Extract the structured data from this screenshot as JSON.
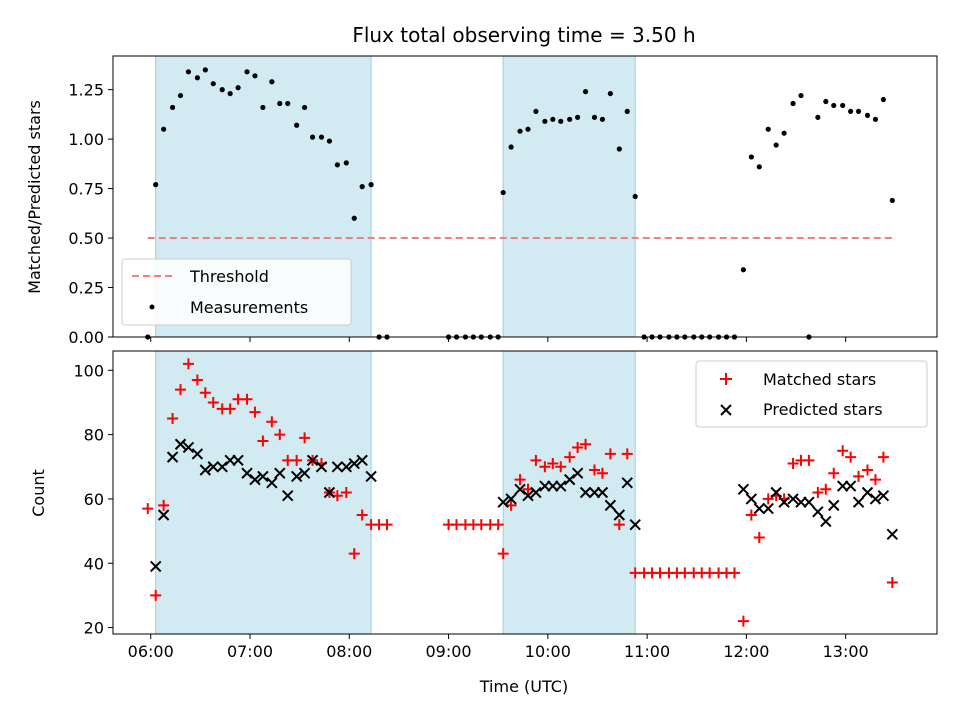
{
  "title": "Flux total observing time = 3.50 h",
  "colors": {
    "threshold": "#f08080",
    "measurement": "#000000",
    "matched": "#ff0000",
    "predicted": "#000000",
    "shade": "#add8e6"
  },
  "chart_data": [
    {
      "type": "scatter",
      "panel": "top",
      "ylabel": "Matched/Predicted stars",
      "xlabel": "",
      "ylim": [
        0,
        1.42
      ],
      "x_unit": "hours (UTC)",
      "xlim": [
        5.62,
        13.92
      ],
      "yticks": [
        "0.00",
        "0.25",
        "0.50",
        "0.75",
        "1.00",
        "1.25"
      ],
      "legend_position": "lower-left",
      "grid": false,
      "shaded_intervals": [
        [
          6.05,
          8.22
        ],
        [
          9.55,
          10.88
        ]
      ],
      "series": [
        {
          "name": "Threshold",
          "kind": "dashed-line",
          "x": [
            5.97,
            13.47
          ],
          "y": [
            0.5,
            0.5
          ]
        },
        {
          "name": "Measurements",
          "kind": "points",
          "x": [
            5.97,
            6.05,
            6.13,
            6.22,
            6.3,
            6.38,
            6.47,
            6.55,
            6.63,
            6.72,
            6.8,
            6.88,
            6.97,
            7.05,
            7.13,
            7.22,
            7.3,
            7.38,
            7.47,
            7.55,
            7.63,
            7.72,
            7.8,
            7.88,
            7.97,
            8.05,
            8.13,
            8.22,
            8.3,
            8.38,
            9.0,
            9.08,
            9.17,
            9.25,
            9.33,
            9.42,
            9.5,
            9.55,
            9.63,
            9.72,
            9.8,
            9.88,
            9.97,
            10.05,
            10.13,
            10.22,
            10.3,
            10.38,
            10.47,
            10.55,
            10.63,
            10.72,
            10.8,
            10.88,
            10.97,
            11.05,
            11.13,
            11.22,
            11.3,
            11.38,
            11.47,
            11.55,
            11.63,
            11.72,
            11.8,
            11.88,
            11.97,
            12.05,
            12.13,
            12.22,
            12.3,
            12.38,
            12.47,
            12.55,
            12.63,
            12.72,
            12.8,
            12.88,
            12.97,
            13.05,
            13.13,
            13.22,
            13.3,
            13.38,
            13.47
          ],
          "y": [
            0.0,
            0.77,
            1.05,
            1.16,
            1.22,
            1.34,
            1.31,
            1.35,
            1.28,
            1.25,
            1.23,
            1.26,
            1.34,
            1.32,
            1.16,
            1.29,
            1.18,
            1.18,
            1.07,
            1.16,
            1.01,
            1.01,
            0.99,
            0.87,
            0.88,
            0.6,
            0.76,
            0.77,
            0.0,
            0.0,
            0.0,
            0.0,
            0.0,
            0.0,
            0.0,
            0.0,
            0.0,
            0.73,
            0.96,
            1.04,
            1.05,
            1.14,
            1.09,
            1.1,
            1.09,
            1.1,
            1.11,
            1.24,
            1.11,
            1.1,
            1.23,
            0.95,
            1.14,
            0.71,
            0.0,
            0.0,
            0.0,
            0.0,
            0.0,
            0.0,
            0.0,
            0.0,
            0.0,
            0.0,
            0.0,
            0.0,
            0.34,
            0.91,
            0.86,
            1.05,
            0.97,
            1.03,
            1.18,
            1.22,
            0.0,
            1.11,
            1.19,
            1.17,
            1.17,
            1.14,
            1.14,
            1.12,
            1.1,
            1.2,
            0.69
          ]
        }
      ]
    },
    {
      "type": "scatter",
      "panel": "bottom",
      "ylabel": "Count",
      "xlabel": "Time (UTC)",
      "ylim": [
        18,
        106
      ],
      "x_unit": "hours (UTC)",
      "xlim": [
        5.62,
        13.92
      ],
      "yticks": [
        "20",
        "40",
        "60",
        "80",
        "100"
      ],
      "xticks": [
        "06:00",
        "07:00",
        "08:00",
        "09:00",
        "10:00",
        "11:00",
        "12:00",
        "13:00"
      ],
      "legend_position": "top-right",
      "grid": false,
      "shaded_intervals": [
        [
          6.05,
          8.22
        ],
        [
          9.55,
          10.88
        ]
      ],
      "series": [
        {
          "name": "Matched stars",
          "kind": "plus",
          "x": [
            5.97,
            6.05,
            6.13,
            6.22,
            6.3,
            6.38,
            6.47,
            6.55,
            6.63,
            6.72,
            6.8,
            6.88,
            6.97,
            7.05,
            7.13,
            7.22,
            7.3,
            7.38,
            7.47,
            7.55,
            7.63,
            7.72,
            7.8,
            7.88,
            7.97,
            8.05,
            8.13,
            8.22,
            8.3,
            8.38,
            9.0,
            9.08,
            9.17,
            9.25,
            9.33,
            9.42,
            9.5,
            9.55,
            9.63,
            9.72,
            9.8,
            9.88,
            9.97,
            10.05,
            10.13,
            10.22,
            10.3,
            10.38,
            10.47,
            10.55,
            10.63,
            10.72,
            10.8,
            10.88,
            10.97,
            11.05,
            11.13,
            11.22,
            11.3,
            11.38,
            11.47,
            11.55,
            11.63,
            11.72,
            11.8,
            11.88,
            11.97,
            12.05,
            12.13,
            12.22,
            12.3,
            12.38,
            12.47,
            12.55,
            12.63,
            12.72,
            12.8,
            12.88,
            12.97,
            13.05,
            13.13,
            13.22,
            13.3,
            13.38,
            13.47
          ],
          "y": [
            57,
            30,
            58,
            85,
            94,
            102,
            97,
            93,
            90,
            88,
            88,
            91,
            91,
            87,
            78,
            84,
            80,
            72,
            72,
            79,
            72,
            71,
            62,
            61,
            62,
            43,
            55,
            52,
            52,
            52,
            52,
            52,
            52,
            52,
            52,
            52,
            52,
            43,
            58,
            66,
            63,
            72,
            70,
            71,
            70,
            73,
            76,
            77,
            69,
            68,
            74,
            52,
            74,
            37,
            37,
            37,
            37,
            37,
            37,
            37,
            37,
            37,
            37,
            37,
            37,
            37,
            22,
            55,
            48,
            60,
            61,
            60,
            71,
            72,
            72,
            62,
            63,
            68,
            75,
            73,
            67,
            69,
            66,
            73,
            34
          ]
        },
        {
          "name": "Predicted stars",
          "kind": "cross",
          "x": [
            6.05,
            6.13,
            6.22,
            6.3,
            6.38,
            6.47,
            6.55,
            6.63,
            6.72,
            6.8,
            6.88,
            6.97,
            7.05,
            7.13,
            7.22,
            7.3,
            7.38,
            7.47,
            7.55,
            7.63,
            7.72,
            7.8,
            7.88,
            7.97,
            8.05,
            8.13,
            8.22,
            9.55,
            9.63,
            9.72,
            9.8,
            9.88,
            9.97,
            10.05,
            10.13,
            10.22,
            10.3,
            10.38,
            10.47,
            10.55,
            10.63,
            10.72,
            10.8,
            10.88,
            11.97,
            12.05,
            12.13,
            12.22,
            12.3,
            12.38,
            12.47,
            12.55,
            12.63,
            12.72,
            12.8,
            12.88,
            12.97,
            13.05,
            13.13,
            13.22,
            13.3,
            13.38,
            13.47
          ],
          "y": [
            39,
            55,
            73,
            77,
            76,
            74,
            69,
            70,
            70,
            72,
            72,
            68,
            66,
            67,
            65,
            68,
            61,
            67,
            68,
            72,
            70,
            62,
            70,
            70,
            71,
            72,
            67,
            59,
            60,
            63,
            61,
            62,
            64,
            64,
            64,
            66,
            68,
            62,
            62,
            62,
            58,
            55,
            65,
            52,
            63,
            60,
            57,
            57,
            62,
            59,
            60,
            59,
            59,
            56,
            53,
            58,
            64,
            64,
            59,
            62,
            60,
            61,
            49
          ]
        }
      ]
    }
  ]
}
